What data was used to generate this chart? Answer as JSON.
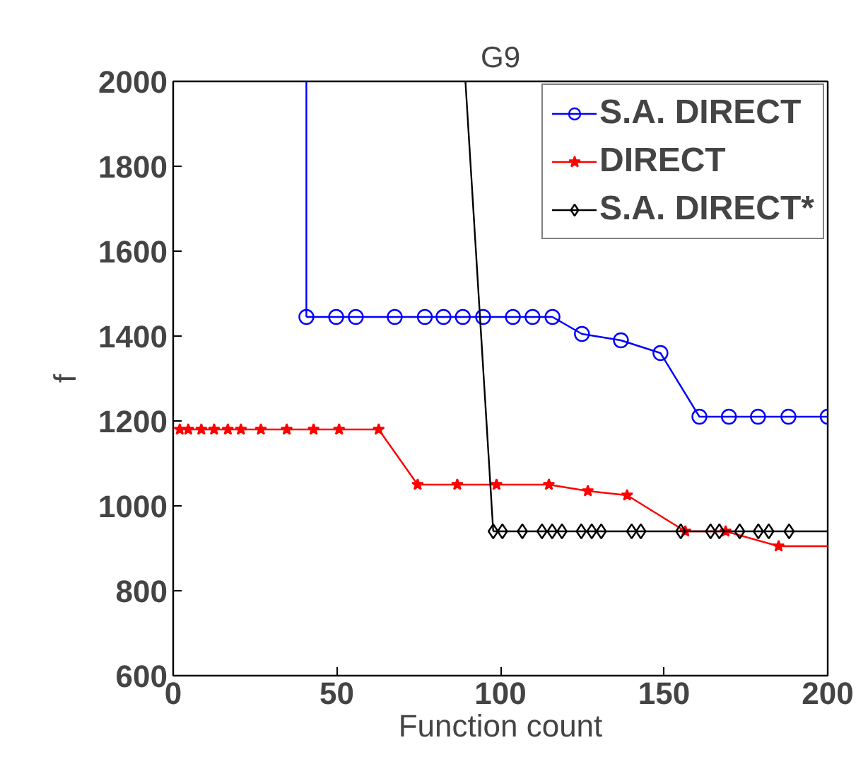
{
  "chart_data": {
    "type": "line",
    "title": "G9",
    "xlabel": "Function count",
    "ylabel": "f",
    "xlim": [
      0,
      200
    ],
    "ylim": [
      600,
      2000
    ],
    "xticks": [
      0,
      50,
      100,
      150,
      200
    ],
    "yticks": [
      600,
      800,
      1000,
      1200,
      1400,
      1600,
      1800,
      2000
    ],
    "grid": false,
    "legend": "top right",
    "series": [
      {
        "name": "S.A. DIRECT",
        "color": "#0000ff",
        "marker": "circle",
        "x": [
          40.7,
          49.8,
          55.8,
          67.7,
          76.9,
          82.6,
          88.5,
          94.7,
          103.8,
          109.8,
          115.9,
          124.9,
          136.8,
          148.9,
          160.8,
          169.8,
          178.7,
          188,
          200
        ],
        "values": [
          1445,
          1445,
          1445,
          1445,
          1445,
          1445,
          1445,
          1445,
          1445,
          1445,
          1445,
          1405,
          1390,
          1360,
          1210,
          1210,
          1210,
          1210,
          1210
        ]
      },
      {
        "name": "DIRECT",
        "color": "#ff0000",
        "marker": "star",
        "x": [
          2.0,
          4.6,
          8.6,
          12.5,
          16.7,
          20.7,
          26.8,
          34.7,
          42.9,
          50.7,
          62.8,
          74.7,
          86.8,
          98.8,
          114.8,
          126.7,
          138.7,
          156.5,
          168.8,
          185.0
        ],
        "values": [
          1180,
          1180,
          1180,
          1180,
          1180,
          1180,
          1180,
          1180,
          1180,
          1180,
          1180,
          1050,
          1050,
          1050,
          1050,
          1035,
          1025,
          940,
          940,
          905
        ]
      },
      {
        "name": "S.A. DIRECT*",
        "color": "#000000",
        "marker": "diamond",
        "x": [
          97.8,
          100.6,
          106.7,
          112.7,
          115.8,
          118.8,
          124.7,
          127.9,
          130.8,
          140.1,
          142.9,
          155.1,
          164.2,
          166.9,
          173.1,
          178.8,
          182,
          188.2
        ],
        "values": [
          940,
          940,
          940,
          940,
          940,
          940,
          940,
          940,
          940,
          940,
          940,
          940,
          940,
          940,
          940,
          940,
          940,
          940
        ]
      },
      {
        "color": "#0000ff",
        "marker": "none",
        "x": [
          40.7,
          40.7
        ],
        "values": [
          2000,
          1445
        ]
      },
      {
        "color": "#ff0000",
        "marker": "none",
        "x": [
          185.0,
          200
        ],
        "values": [
          905,
          905
        ]
      },
      {
        "color": "#000000",
        "marker": "none",
        "x": [
          89.3,
          97.8
        ],
        "values": [
          2000,
          940
        ]
      },
      {
        "color": "#000000",
        "marker": "none",
        "x": [
          188.2,
          200
        ],
        "values": [
          940,
          940
        ]
      }
    ]
  }
}
